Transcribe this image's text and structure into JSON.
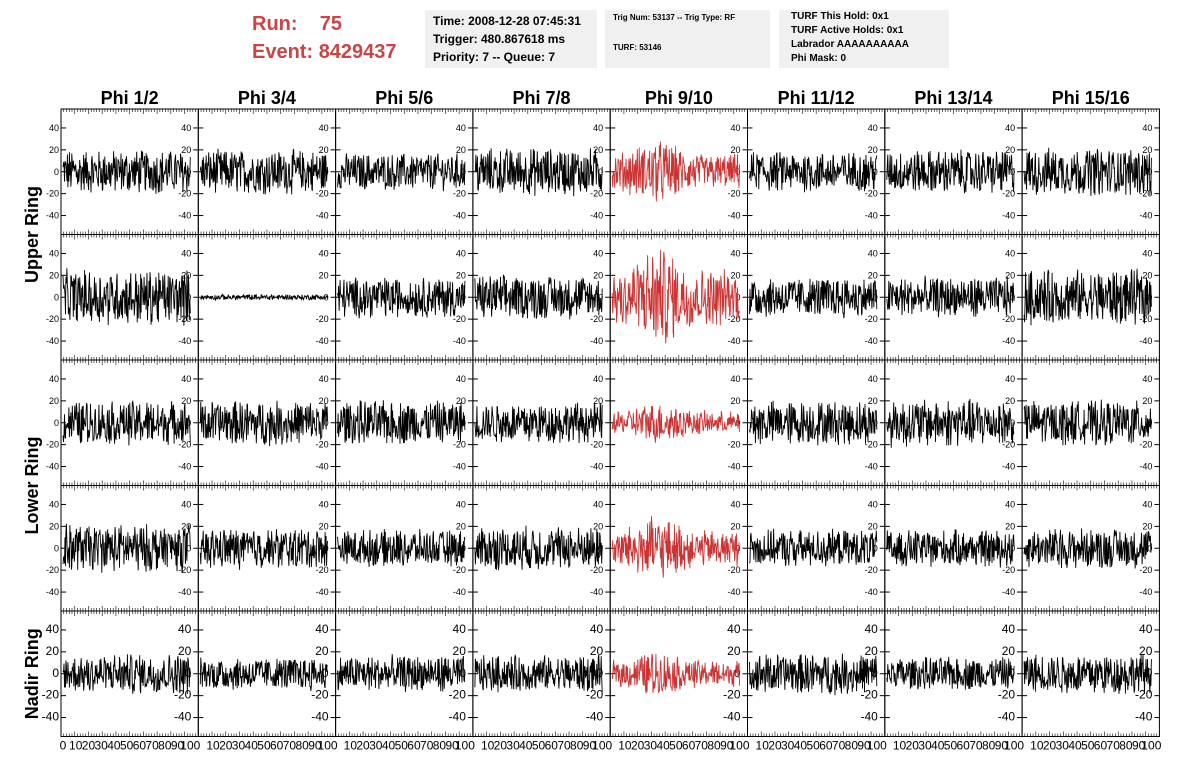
{
  "header": {
    "run_label": "Run:",
    "run_value": "75",
    "event_label": "Event:",
    "event_value": "8429437",
    "time": "Time: 2008-12-28 07:45:31",
    "trigger": "Trigger: 480.867618 ms",
    "priority": "Priority: 7 -- Queue: 7",
    "trig_num": "Trig Num: 53137 -- Trig Type: RF",
    "turf": "TURF: 53146",
    "turf_this_hold": "TURF This Hold: 0x1",
    "turf_active_holds": "TURF Active Holds: 0x1",
    "labrador": "Labrador AAAAAAAAAA",
    "phi_mask": "Phi Mask: 0"
  },
  "colors": {
    "trace": "#000000",
    "highlight": "#cc3333",
    "header_red": "#cc4444",
    "info_bg": "#f0f0f0"
  },
  "chart_data": {
    "type": "line",
    "columns": [
      "Phi 1/2",
      "Phi 3/4",
      "Phi 5/6",
      "Phi 7/8",
      "Phi 9/10",
      "Phi 11/12",
      "Phi 13/14",
      "Phi 15/16"
    ],
    "rows": [
      "Upper Ring",
      "Upper Ring",
      "Lower Ring",
      "Lower Ring",
      "Nadir Ring"
    ],
    "row_labels": [
      {
        "text": "Upper Ring",
        "rows": [
          0,
          1
        ]
      },
      {
        "text": "Lower Ring",
        "rows": [
          2,
          3
        ]
      },
      {
        "text": "Nadir Ring",
        "rows": [
          4
        ]
      }
    ],
    "highlight_column": 4,
    "ylim": [
      -50,
      50
    ],
    "yticks": [
      -40,
      -20,
      0,
      20,
      40
    ],
    "xlim": [
      0,
      100
    ],
    "xticks": [
      0,
      10,
      20,
      30,
      40,
      50,
      60,
      70,
      80,
      90,
      100
    ],
    "amplitudes": [
      [
        12,
        12,
        10,
        13,
        14,
        11,
        12,
        13
      ],
      [
        15,
        1.5,
        11,
        12,
        22,
        11,
        11,
        15
      ],
      [
        12,
        12,
        12,
        11,
        9,
        12,
        13,
        12
      ],
      [
        13,
        11,
        10,
        12,
        14,
        10,
        10,
        11
      ],
      [
        11,
        9,
        10,
        10,
        10,
        11,
        9,
        11
      ]
    ]
  }
}
